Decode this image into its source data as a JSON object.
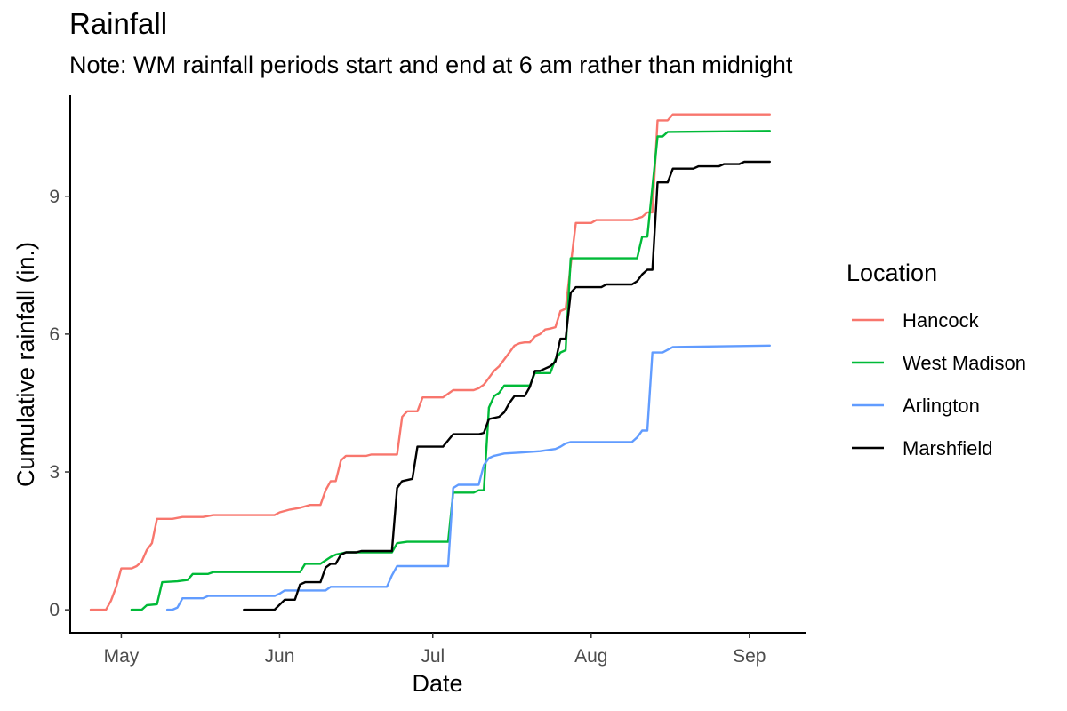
{
  "chart_data": {
    "type": "line",
    "title": "Rainfall",
    "subtitle": "Note: WM rainfall periods start and end at 6 am rather than midnight",
    "xlabel": "Date",
    "ylabel": "Cumulative rainfall (in.)",
    "x_ticks": [
      {
        "date": "2023-05-01",
        "label": "May"
      },
      {
        "date": "2023-06-01",
        "label": "Jun"
      },
      {
        "date": "2023-07-01",
        "label": "Jul"
      },
      {
        "date": "2023-08-01",
        "label": "Aug"
      },
      {
        "date": "2023-09-01",
        "label": "Sep"
      }
    ],
    "y_ticks": [
      0,
      3,
      6,
      9
    ],
    "xlim": [
      "2023-04-21",
      "2023-09-12"
    ],
    "ylim": [
      -0.5,
      11.2
    ],
    "grid": false,
    "legend": {
      "title": "Location",
      "position": "right"
    },
    "series": [
      {
        "name": "Hancock",
        "color": "#F8766D",
        "points": [
          [
            "2023-04-25",
            0
          ],
          [
            "2023-04-28",
            0
          ],
          [
            "2023-04-29",
            0.2
          ],
          [
            "2023-04-30",
            0.5
          ],
          [
            "2023-05-01",
            0.9
          ],
          [
            "2023-05-03",
            0.9
          ],
          [
            "2023-05-04",
            0.95
          ],
          [
            "2023-05-05",
            1.05
          ],
          [
            "2023-05-06",
            1.3
          ],
          [
            "2023-05-07",
            1.45
          ],
          [
            "2023-05-08",
            1.98
          ],
          [
            "2023-05-11",
            1.98
          ],
          [
            "2023-05-13",
            2.02
          ],
          [
            "2023-05-17",
            2.02
          ],
          [
            "2023-05-19",
            2.06
          ],
          [
            "2023-05-31",
            2.06
          ],
          [
            "2023-06-01",
            2.12
          ],
          [
            "2023-06-03",
            2.18
          ],
          [
            "2023-06-05",
            2.22
          ],
          [
            "2023-06-07",
            2.28
          ],
          [
            "2023-06-09",
            2.28
          ],
          [
            "2023-06-10",
            2.6
          ],
          [
            "2023-06-11",
            2.8
          ],
          [
            "2023-06-12",
            2.8
          ],
          [
            "2023-06-13",
            3.25
          ],
          [
            "2023-06-14",
            3.35
          ],
          [
            "2023-06-18",
            3.35
          ],
          [
            "2023-06-19",
            3.38
          ],
          [
            "2023-06-24",
            3.38
          ],
          [
            "2023-06-25",
            4.2
          ],
          [
            "2023-06-26",
            4.32
          ],
          [
            "2023-06-28",
            4.32
          ],
          [
            "2023-06-29",
            4.62
          ],
          [
            "2023-07-03",
            4.62
          ],
          [
            "2023-07-05",
            4.78
          ],
          [
            "2023-07-09",
            4.78
          ],
          [
            "2023-07-10",
            4.82
          ],
          [
            "2023-07-11",
            4.9
          ],
          [
            "2023-07-13",
            5.2
          ],
          [
            "2023-07-14",
            5.3
          ],
          [
            "2023-07-16",
            5.6
          ],
          [
            "2023-07-17",
            5.75
          ],
          [
            "2023-07-18",
            5.8
          ],
          [
            "2023-07-19",
            5.82
          ],
          [
            "2023-07-20",
            5.82
          ],
          [
            "2023-07-21",
            5.95
          ],
          [
            "2023-07-22",
            6.0
          ],
          [
            "2023-07-23",
            6.1
          ],
          [
            "2023-07-24",
            6.12
          ],
          [
            "2023-07-25",
            6.15
          ],
          [
            "2023-07-26",
            6.5
          ],
          [
            "2023-07-27",
            6.55
          ],
          [
            "2023-07-28",
            7.5
          ],
          [
            "2023-07-29",
            8.42
          ],
          [
            "2023-08-01",
            8.42
          ],
          [
            "2023-08-02",
            8.48
          ],
          [
            "2023-08-09",
            8.48
          ],
          [
            "2023-08-11",
            8.55
          ],
          [
            "2023-08-12",
            8.65
          ],
          [
            "2023-08-13",
            8.65
          ],
          [
            "2023-08-14",
            10.65
          ],
          [
            "2023-08-16",
            10.65
          ],
          [
            "2023-08-17",
            10.78
          ],
          [
            "2023-09-05",
            10.78
          ]
        ]
      },
      {
        "name": "West Madison",
        "color": "#00BA38",
        "points": [
          [
            "2023-05-03",
            0
          ],
          [
            "2023-05-05",
            0
          ],
          [
            "2023-05-06",
            0.1
          ],
          [
            "2023-05-08",
            0.12
          ],
          [
            "2023-05-09",
            0.6
          ],
          [
            "2023-05-12",
            0.62
          ],
          [
            "2023-05-14",
            0.65
          ],
          [
            "2023-05-15",
            0.78
          ],
          [
            "2023-05-18",
            0.78
          ],
          [
            "2023-05-19",
            0.82
          ],
          [
            "2023-06-05",
            0.82
          ],
          [
            "2023-06-06",
            1.0
          ],
          [
            "2023-06-09",
            1.0
          ],
          [
            "2023-06-11",
            1.15
          ],
          [
            "2023-06-12",
            1.2
          ],
          [
            "2023-06-14",
            1.25
          ],
          [
            "2023-06-23",
            1.25
          ],
          [
            "2023-06-24",
            1.45
          ],
          [
            "2023-06-26",
            1.48
          ],
          [
            "2023-07-04",
            1.48
          ],
          [
            "2023-07-05",
            2.55
          ],
          [
            "2023-07-09",
            2.55
          ],
          [
            "2023-07-10",
            2.6
          ],
          [
            "2023-07-11",
            2.6
          ],
          [
            "2023-07-12",
            4.4
          ],
          [
            "2023-07-13",
            4.65
          ],
          [
            "2023-07-14",
            4.72
          ],
          [
            "2023-07-15",
            4.88
          ],
          [
            "2023-07-20",
            4.88
          ],
          [
            "2023-07-21",
            5.15
          ],
          [
            "2023-07-24",
            5.15
          ],
          [
            "2023-07-25",
            5.45
          ],
          [
            "2023-07-26",
            5.6
          ],
          [
            "2023-07-27",
            5.65
          ],
          [
            "2023-07-28",
            7.65
          ],
          [
            "2023-08-10",
            7.65
          ],
          [
            "2023-08-11",
            8.12
          ],
          [
            "2023-08-12",
            8.12
          ],
          [
            "2023-08-14",
            10.3
          ],
          [
            "2023-08-15",
            10.3
          ],
          [
            "2023-08-16",
            10.4
          ],
          [
            "2023-09-05",
            10.42
          ]
        ]
      },
      {
        "name": "Arlington",
        "color": "#619CFF",
        "points": [
          [
            "2023-05-10",
            0
          ],
          [
            "2023-05-11",
            0
          ],
          [
            "2023-05-12",
            0.05
          ],
          [
            "2023-05-13",
            0.25
          ],
          [
            "2023-05-17",
            0.25
          ],
          [
            "2023-05-18",
            0.3
          ],
          [
            "2023-05-31",
            0.3
          ],
          [
            "2023-06-01",
            0.35
          ],
          [
            "2023-06-02",
            0.42
          ],
          [
            "2023-06-10",
            0.42
          ],
          [
            "2023-06-11",
            0.5
          ],
          [
            "2023-06-22",
            0.5
          ],
          [
            "2023-06-23",
            0.75
          ],
          [
            "2023-06-24",
            0.95
          ],
          [
            "2023-07-04",
            0.95
          ],
          [
            "2023-07-05",
            2.65
          ],
          [
            "2023-07-06",
            2.72
          ],
          [
            "2023-07-10",
            2.72
          ],
          [
            "2023-07-11",
            3.15
          ],
          [
            "2023-07-12",
            3.3
          ],
          [
            "2023-07-13",
            3.35
          ],
          [
            "2023-07-15",
            3.4
          ],
          [
            "2023-07-18",
            3.42
          ],
          [
            "2023-07-22",
            3.45
          ],
          [
            "2023-07-25",
            3.5
          ],
          [
            "2023-07-26",
            3.55
          ],
          [
            "2023-07-27",
            3.62
          ],
          [
            "2023-07-28",
            3.65
          ],
          [
            "2023-08-09",
            3.65
          ],
          [
            "2023-08-10",
            3.75
          ],
          [
            "2023-08-11",
            3.9
          ],
          [
            "2023-08-12",
            3.9
          ],
          [
            "2023-08-13",
            5.6
          ],
          [
            "2023-08-15",
            5.6
          ],
          [
            "2023-08-17",
            5.72
          ],
          [
            "2023-09-05",
            5.75
          ]
        ]
      },
      {
        "name": "Marshfield",
        "color": "#000000",
        "points": [
          [
            "2023-05-25",
            0
          ],
          [
            "2023-05-31",
            0
          ],
          [
            "2023-06-02",
            0.22
          ],
          [
            "2023-06-04",
            0.22
          ],
          [
            "2023-06-05",
            0.55
          ],
          [
            "2023-06-06",
            0.6
          ],
          [
            "2023-06-09",
            0.6
          ],
          [
            "2023-06-10",
            0.92
          ],
          [
            "2023-06-11",
            1.0
          ],
          [
            "2023-06-12",
            1.0
          ],
          [
            "2023-06-13",
            1.2
          ],
          [
            "2023-06-14",
            1.25
          ],
          [
            "2023-06-16",
            1.25
          ],
          [
            "2023-06-17",
            1.28
          ],
          [
            "2023-06-23",
            1.28
          ],
          [
            "2023-06-24",
            2.65
          ],
          [
            "2023-06-25",
            2.8
          ],
          [
            "2023-06-27",
            2.85
          ],
          [
            "2023-06-28",
            3.55
          ],
          [
            "2023-07-03",
            3.55
          ],
          [
            "2023-07-05",
            3.82
          ],
          [
            "2023-07-10",
            3.82
          ],
          [
            "2023-07-11",
            3.85
          ],
          [
            "2023-07-12",
            4.15
          ],
          [
            "2023-07-14",
            4.2
          ],
          [
            "2023-07-15",
            4.3
          ],
          [
            "2023-07-16",
            4.5
          ],
          [
            "2023-07-17",
            4.65
          ],
          [
            "2023-07-19",
            4.65
          ],
          [
            "2023-07-20",
            4.85
          ],
          [
            "2023-07-21",
            5.2
          ],
          [
            "2023-07-22",
            5.2
          ],
          [
            "2023-07-23",
            5.25
          ],
          [
            "2023-07-24",
            5.3
          ],
          [
            "2023-07-25",
            5.4
          ],
          [
            "2023-07-26",
            5.9
          ],
          [
            "2023-07-27",
            5.9
          ],
          [
            "2023-07-28",
            6.9
          ],
          [
            "2023-07-29",
            7.02
          ],
          [
            "2023-08-03",
            7.02
          ],
          [
            "2023-08-04",
            7.08
          ],
          [
            "2023-08-09",
            7.08
          ],
          [
            "2023-08-10",
            7.15
          ],
          [
            "2023-08-11",
            7.3
          ],
          [
            "2023-08-12",
            7.4
          ],
          [
            "2023-08-13",
            7.4
          ],
          [
            "2023-08-14",
            9.3
          ],
          [
            "2023-08-16",
            9.3
          ],
          [
            "2023-08-17",
            9.6
          ],
          [
            "2023-08-21",
            9.6
          ],
          [
            "2023-08-22",
            9.65
          ],
          [
            "2023-08-26",
            9.65
          ],
          [
            "2023-08-27",
            9.7
          ],
          [
            "2023-08-30",
            9.7
          ],
          [
            "2023-08-31",
            9.75
          ],
          [
            "2023-09-05",
            9.75
          ]
        ]
      }
    ]
  }
}
